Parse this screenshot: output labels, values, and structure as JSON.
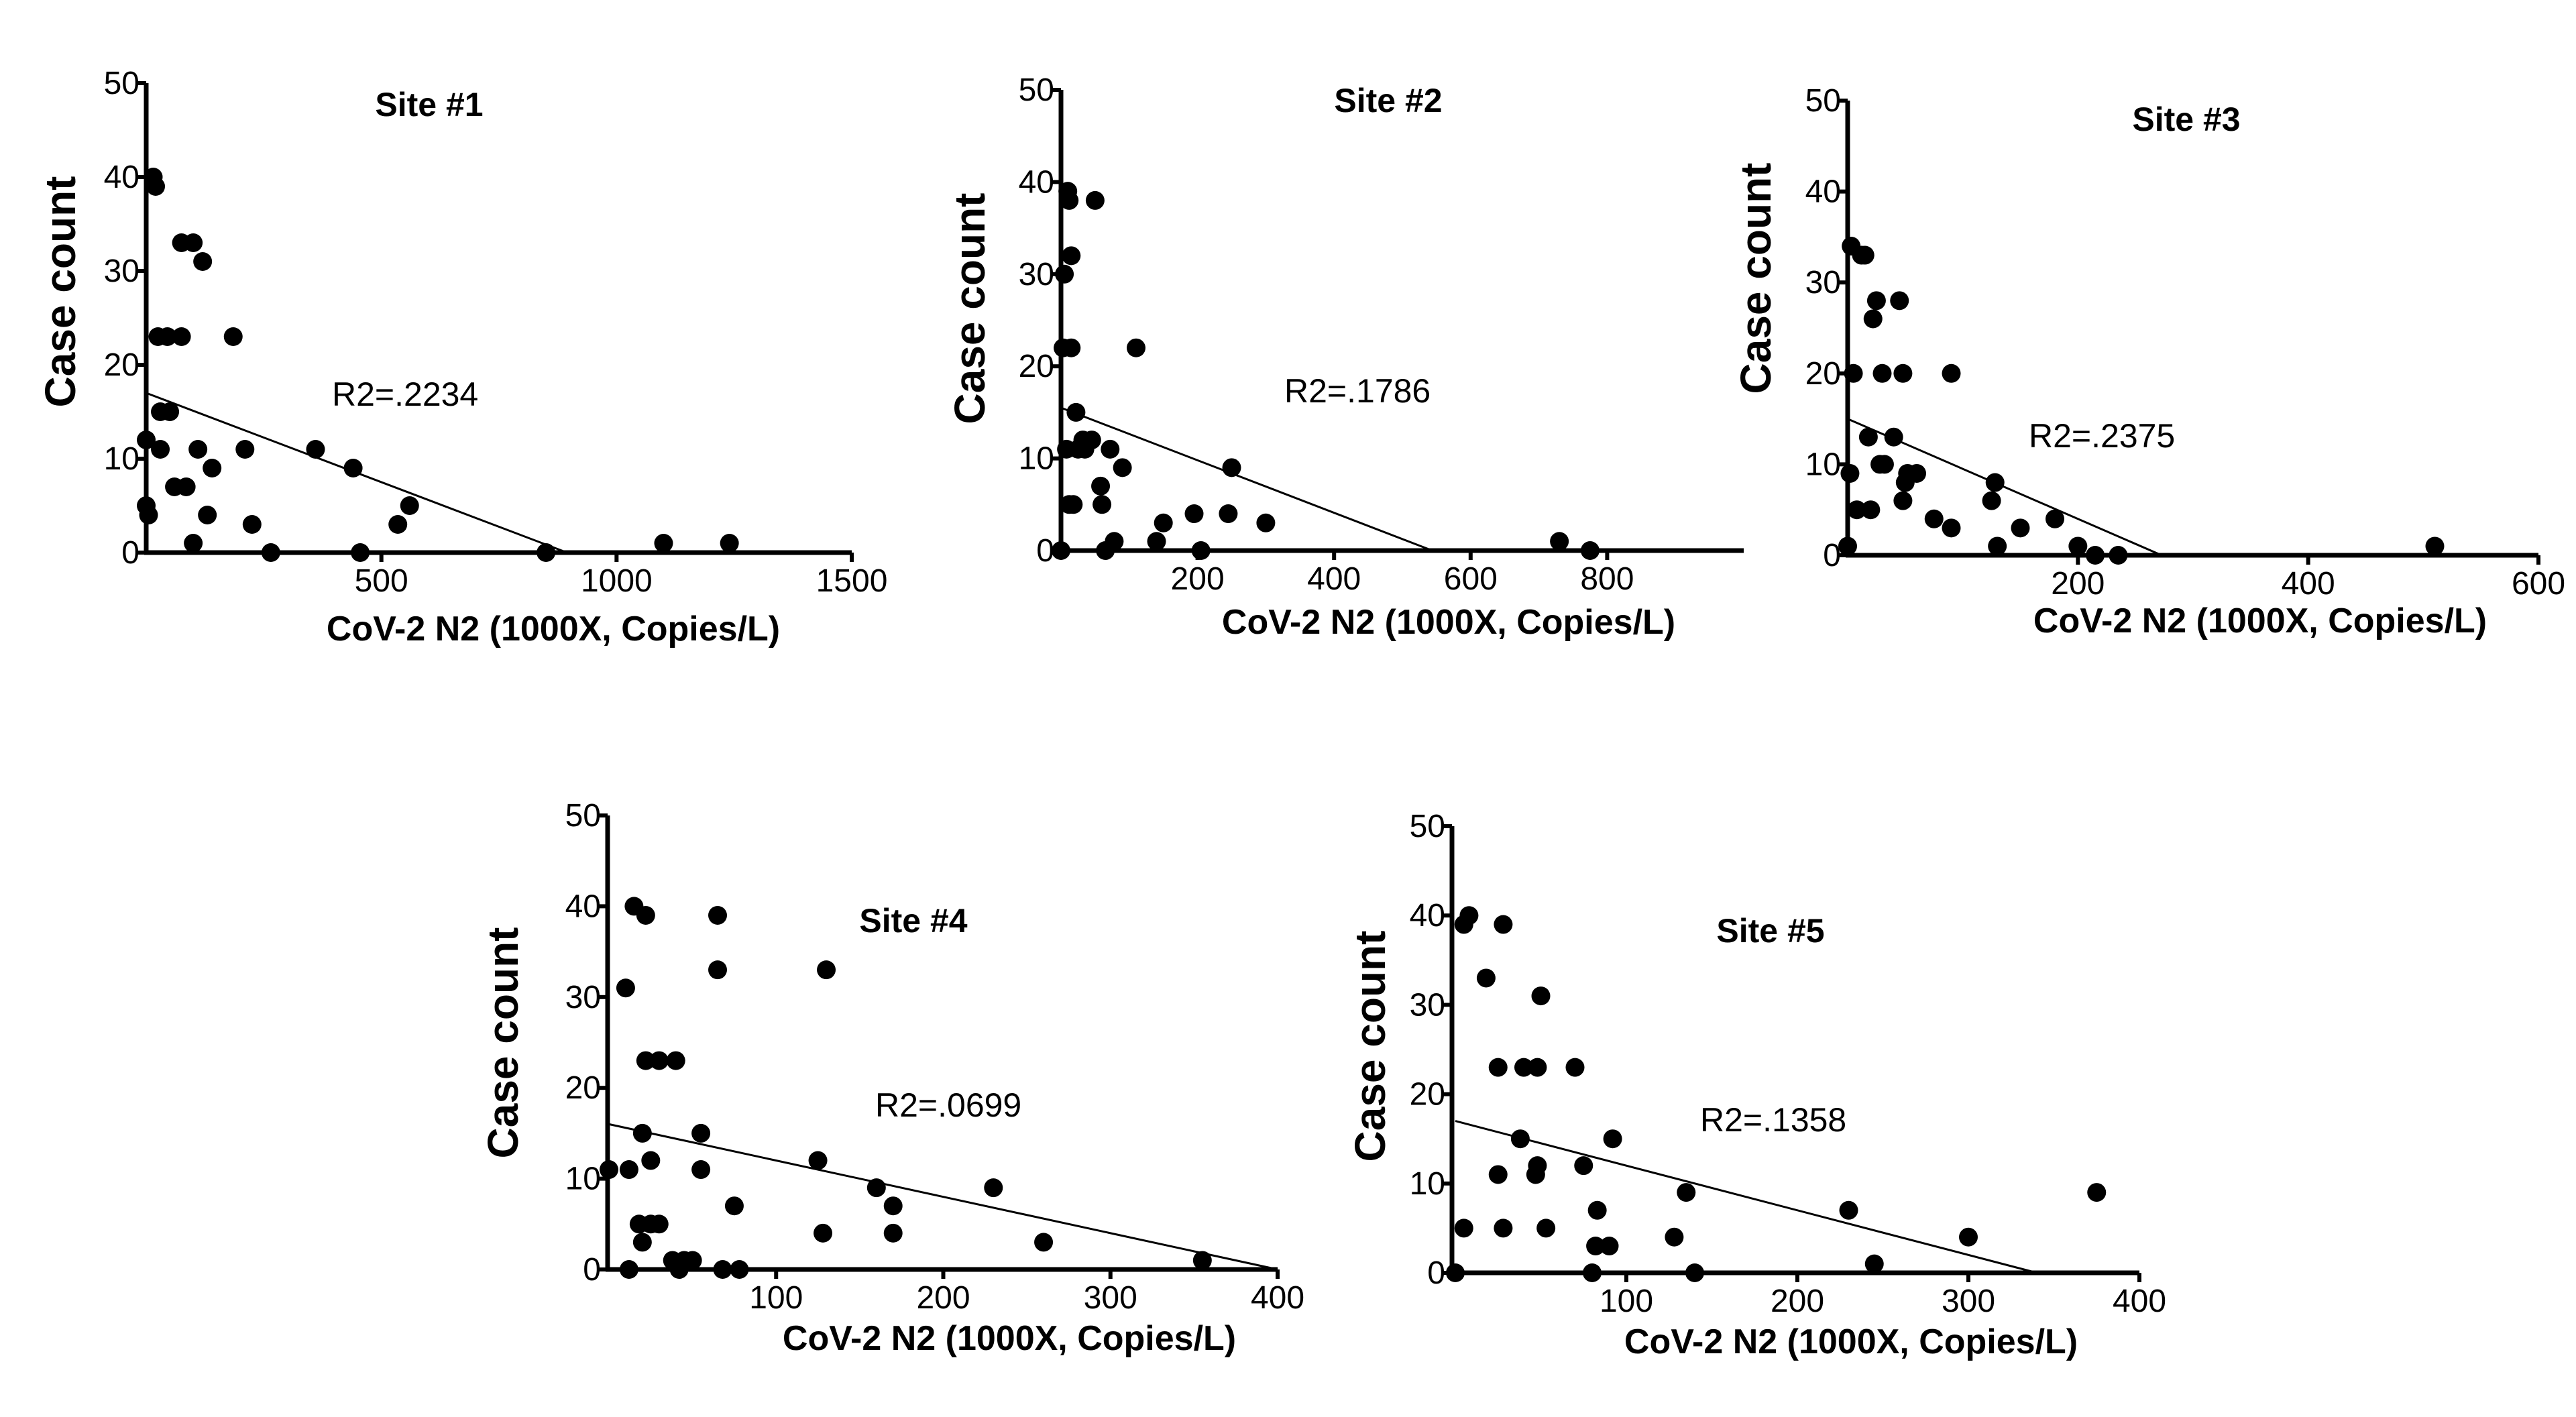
{
  "colors": {
    "background": "#ffffff",
    "ink": "#000000"
  },
  "chart_data": [
    {
      "type": "scatter",
      "title": "Site #1",
      "xlabel": "CoV-2 N2 (1000X, Copies/L)",
      "ylabel": "Case count",
      "annotation": "R2=.2234",
      "xlim": [
        0,
        1500
      ],
      "ylim": [
        0,
        50
      ],
      "xticks": [
        500,
        1000,
        1500
      ],
      "yticks": [
        0,
        10,
        20,
        30,
        40,
        50
      ],
      "fit_line": {
        "intercept": 17,
        "slope": -0.019
      },
      "points": [
        {
          "x": 0,
          "y": 12
        },
        {
          "x": 0,
          "y": 5
        },
        {
          "x": 5,
          "y": 4
        },
        {
          "x": 15,
          "y": 40
        },
        {
          "x": 20,
          "y": 39
        },
        {
          "x": 25,
          "y": 23
        },
        {
          "x": 30,
          "y": 11
        },
        {
          "x": 30,
          "y": 15
        },
        {
          "x": 45,
          "y": 23
        },
        {
          "x": 50,
          "y": 15
        },
        {
          "x": 60,
          "y": 7
        },
        {
          "x": 75,
          "y": 33
        },
        {
          "x": 75,
          "y": 23
        },
        {
          "x": 85,
          "y": 7
        },
        {
          "x": 100,
          "y": 33
        },
        {
          "x": 100,
          "y": 1
        },
        {
          "x": 110,
          "y": 11
        },
        {
          "x": 120,
          "y": 31
        },
        {
          "x": 130,
          "y": 4
        },
        {
          "x": 140,
          "y": 9
        },
        {
          "x": 185,
          "y": 23
        },
        {
          "x": 210,
          "y": 11
        },
        {
          "x": 225,
          "y": 3
        },
        {
          "x": 265,
          "y": 0
        },
        {
          "x": 360,
          "y": 11
        },
        {
          "x": 440,
          "y": 9
        },
        {
          "x": 455,
          "y": 0
        },
        {
          "x": 535,
          "y": 3
        },
        {
          "x": 560,
          "y": 5
        },
        {
          "x": 850,
          "y": 0
        },
        {
          "x": 1100,
          "y": 1
        },
        {
          "x": 1240,
          "y": 1
        }
      ]
    },
    {
      "type": "scatter",
      "title": "Site #2",
      "xlabel": "CoV-2 N2 (1000X, Copies/L)",
      "ylabel": "Case count",
      "annotation": "R2=.1786",
      "xlim": [
        0,
        1000
      ],
      "ylim": [
        0,
        50
      ],
      "xticks": [
        200,
        400,
        600,
        800
      ],
      "yticks": [
        0,
        10,
        20,
        30,
        40,
        50
      ],
      "fit_line": {
        "intercept": 15.5,
        "slope": -0.0285
      },
      "points": [
        {
          "x": 0,
          "y": 0
        },
        {
          "x": 3,
          "y": 22
        },
        {
          "x": 5,
          "y": 30
        },
        {
          "x": 8,
          "y": 11
        },
        {
          "x": 10,
          "y": 39
        },
        {
          "x": 12,
          "y": 5
        },
        {
          "x": 12,
          "y": 38
        },
        {
          "x": 15,
          "y": 22
        },
        {
          "x": 15,
          "y": 32
        },
        {
          "x": 18,
          "y": 5
        },
        {
          "x": 22,
          "y": 15
        },
        {
          "x": 25,
          "y": 11
        },
        {
          "x": 32,
          "y": 12
        },
        {
          "x": 35,
          "y": 11
        },
        {
          "x": 45,
          "y": 12
        },
        {
          "x": 50,
          "y": 38
        },
        {
          "x": 58,
          "y": 7
        },
        {
          "x": 60,
          "y": 5
        },
        {
          "x": 65,
          "y": 0
        },
        {
          "x": 72,
          "y": 11
        },
        {
          "x": 78,
          "y": 1
        },
        {
          "x": 90,
          "y": 9
        },
        {
          "x": 110,
          "y": 22
        },
        {
          "x": 140,
          "y": 1
        },
        {
          "x": 150,
          "y": 3
        },
        {
          "x": 195,
          "y": 4
        },
        {
          "x": 205,
          "y": 0
        },
        {
          "x": 245,
          "y": 4
        },
        {
          "x": 250,
          "y": 9
        },
        {
          "x": 300,
          "y": 3
        },
        {
          "x": 730,
          "y": 1
        },
        {
          "x": 775,
          "y": 0
        }
      ]
    },
    {
      "type": "scatter",
      "title": "Site #3",
      "xlabel": "CoV-2 N2 (1000X, Copies/L)",
      "ylabel": "Case count",
      "annotation": "R2=.2375",
      "xlim": [
        0,
        600
      ],
      "ylim": [
        0,
        50
      ],
      "xticks": [
        200,
        400,
        600
      ],
      "yticks": [
        0,
        10,
        20,
        30,
        40,
        50
      ],
      "fit_line": {
        "intercept": 15,
        "slope": -0.055
      },
      "points": [
        {
          "x": 0,
          "y": 1
        },
        {
          "x": 2,
          "y": 9
        },
        {
          "x": 3,
          "y": 34
        },
        {
          "x": 5,
          "y": 20
        },
        {
          "x": 8,
          "y": 5
        },
        {
          "x": 12,
          "y": 33
        },
        {
          "x": 15,
          "y": 33
        },
        {
          "x": 18,
          "y": 13
        },
        {
          "x": 20,
          "y": 5
        },
        {
          "x": 22,
          "y": 26
        },
        {
          "x": 25,
          "y": 28
        },
        {
          "x": 28,
          "y": 10
        },
        {
          "x": 30,
          "y": 20
        },
        {
          "x": 32,
          "y": 10
        },
        {
          "x": 40,
          "y": 13
        },
        {
          "x": 45,
          "y": 28
        },
        {
          "x": 48,
          "y": 20
        },
        {
          "x": 48,
          "y": 6
        },
        {
          "x": 50,
          "y": 8
        },
        {
          "x": 52,
          "y": 9
        },
        {
          "x": 60,
          "y": 9
        },
        {
          "x": 75,
          "y": 4
        },
        {
          "x": 90,
          "y": 20
        },
        {
          "x": 90,
          "y": 3
        },
        {
          "x": 125,
          "y": 6
        },
        {
          "x": 128,
          "y": 8
        },
        {
          "x": 130,
          "y": 1
        },
        {
          "x": 150,
          "y": 3
        },
        {
          "x": 180,
          "y": 4
        },
        {
          "x": 200,
          "y": 1
        },
        {
          "x": 215,
          "y": 0
        },
        {
          "x": 235,
          "y": 0
        },
        {
          "x": 510,
          "y": 1
        }
      ]
    },
    {
      "type": "scatter",
      "title": "Site #4",
      "xlabel": "CoV-2 N2 (1000X, Copies/L)",
      "ylabel": "Case count",
      "annotation": "R2=.0699",
      "xlim": [
        0,
        400
      ],
      "ylim": [
        0,
        50
      ],
      "xticks": [
        100,
        200,
        300,
        400
      ],
      "yticks": [
        0,
        10,
        20,
        30,
        40,
        50
      ],
      "fit_line": {
        "intercept": 16,
        "slope": -0.04
      },
      "points": [
        {
          "x": 0,
          "y": 11
        },
        {
          "x": 10,
          "y": 31
        },
        {
          "x": 12,
          "y": 0
        },
        {
          "x": 12,
          "y": 11
        },
        {
          "x": 15,
          "y": 40
        },
        {
          "x": 18,
          "y": 5
        },
        {
          "x": 20,
          "y": 3
        },
        {
          "x": 20,
          "y": 15
        },
        {
          "x": 22,
          "y": 23
        },
        {
          "x": 22,
          "y": 39
        },
        {
          "x": 25,
          "y": 12
        },
        {
          "x": 25,
          "y": 5
        },
        {
          "x": 30,
          "y": 23
        },
        {
          "x": 30,
          "y": 5
        },
        {
          "x": 38,
          "y": 1
        },
        {
          "x": 40,
          "y": 23
        },
        {
          "x": 42,
          "y": 0
        },
        {
          "x": 45,
          "y": 1
        },
        {
          "x": 50,
          "y": 1
        },
        {
          "x": 55,
          "y": 15
        },
        {
          "x": 55,
          "y": 11
        },
        {
          "x": 65,
          "y": 39
        },
        {
          "x": 65,
          "y": 33
        },
        {
          "x": 68,
          "y": 0
        },
        {
          "x": 75,
          "y": 7
        },
        {
          "x": 78,
          "y": 0
        },
        {
          "x": 125,
          "y": 12
        },
        {
          "x": 128,
          "y": 4
        },
        {
          "x": 130,
          "y": 33
        },
        {
          "x": 160,
          "y": 9
        },
        {
          "x": 170,
          "y": 7
        },
        {
          "x": 170,
          "y": 4
        },
        {
          "x": 230,
          "y": 9
        },
        {
          "x": 260,
          "y": 3
        },
        {
          "x": 355,
          "y": 1
        }
      ]
    },
    {
      "type": "scatter",
      "title": "Site #5",
      "xlabel": "CoV-2 N2 (1000X, Copies/L)",
      "ylabel": "Case count",
      "annotation": "R2=.1358",
      "xlim": [
        0,
        400
      ],
      "ylim": [
        0,
        50
      ],
      "xticks": [
        100,
        200,
        300,
        400
      ],
      "yticks": [
        0,
        10,
        20,
        30,
        40,
        50
      ],
      "fit_line": {
        "intercept": 17,
        "slope": -0.05
      },
      "points": [
        {
          "x": 0,
          "y": 0
        },
        {
          "x": 5,
          "y": 5
        },
        {
          "x": 5,
          "y": 39
        },
        {
          "x": 8,
          "y": 40
        },
        {
          "x": 18,
          "y": 33
        },
        {
          "x": 25,
          "y": 23
        },
        {
          "x": 25,
          "y": 11
        },
        {
          "x": 28,
          "y": 5
        },
        {
          "x": 28,
          "y": 39
        },
        {
          "x": 38,
          "y": 15
        },
        {
          "x": 40,
          "y": 23
        },
        {
          "x": 47,
          "y": 11
        },
        {
          "x": 48,
          "y": 23
        },
        {
          "x": 48,
          "y": 12
        },
        {
          "x": 50,
          "y": 31
        },
        {
          "x": 53,
          "y": 5
        },
        {
          "x": 70,
          "y": 23
        },
        {
          "x": 75,
          "y": 12
        },
        {
          "x": 80,
          "y": 0
        },
        {
          "x": 82,
          "y": 3
        },
        {
          "x": 83,
          "y": 7
        },
        {
          "x": 90,
          "y": 3
        },
        {
          "x": 92,
          "y": 15
        },
        {
          "x": 128,
          "y": 4
        },
        {
          "x": 135,
          "y": 9
        },
        {
          "x": 140,
          "y": 0
        },
        {
          "x": 230,
          "y": 7
        },
        {
          "x": 245,
          "y": 1
        },
        {
          "x": 300,
          "y": 4
        },
        {
          "x": 375,
          "y": 9
        }
      ]
    }
  ]
}
